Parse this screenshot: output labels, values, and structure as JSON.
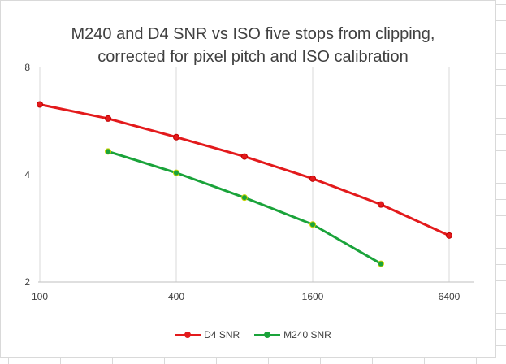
{
  "chart_data": {
    "type": "line",
    "title_line1": "M240 and D4 SNR vs ISO five stops from clipping,",
    "title_line2": "corrected for pixel pitch and ISO calibration",
    "x_ticks": [
      100,
      400,
      1600,
      6400
    ],
    "y_ticks": [
      2,
      4,
      8
    ],
    "xlim": [
      100,
      6400
    ],
    "ylim": [
      2,
      8
    ],
    "x_scale": "log2",
    "y_scale": "log2",
    "grid": "vertical",
    "legend_position": "bottom",
    "series": [
      {
        "name": "D4 SNR",
        "color": "#e31a1c",
        "x": [
          100,
          200,
          400,
          800,
          1600,
          3200,
          6400
        ],
        "y": [
          6.3,
          5.75,
          5.1,
          4.5,
          3.9,
          3.3,
          2.7
        ]
      },
      {
        "name": "M240 SNR",
        "color": "#1aa33a",
        "x": [
          200,
          400,
          800,
          1600,
          3200
        ],
        "y": [
          4.65,
          4.05,
          3.45,
          2.9,
          2.25
        ]
      }
    ]
  }
}
